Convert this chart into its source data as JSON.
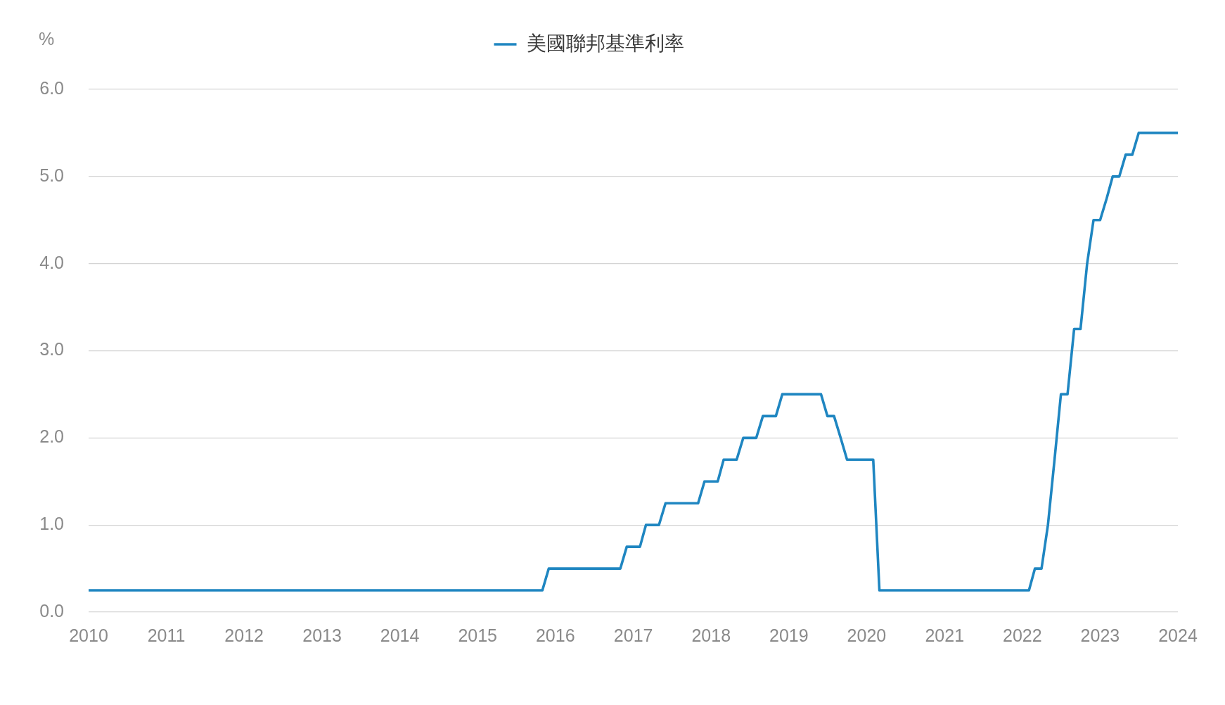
{
  "chart_data": {
    "type": "line",
    "ylabel": "%",
    "x": [
      "2010-01",
      "2015-11",
      "2015-12",
      "2016-11",
      "2016-12",
      "2017-02",
      "2017-03",
      "2017-05",
      "2017-06",
      "2017-11",
      "2017-12",
      "2018-02",
      "2018-03",
      "2018-05",
      "2018-06",
      "2018-08",
      "2018-09",
      "2018-11",
      "2018-12",
      "2019-06",
      "2019-07",
      "2019-08",
      "2019-09",
      "2019-10",
      "2020-02",
      "2020-03",
      "2022-02",
      "2022-03",
      "2022-04",
      "2022-05",
      "2022-06",
      "2022-07",
      "2022-08",
      "2022-09",
      "2022-10",
      "2022-11",
      "2022-12",
      "2023-01",
      "2023-02",
      "2023-03",
      "2023-04",
      "2023-05",
      "2023-06",
      "2023-07",
      "2024-01"
    ],
    "series": [
      {
        "name": "美國聯邦基準利率",
        "color": "#1f86c1",
        "values": [
          0.25,
          0.25,
          0.5,
          0.5,
          0.75,
          0.75,
          1.0,
          1.0,
          1.25,
          1.25,
          1.5,
          1.5,
          1.75,
          1.75,
          2.0,
          2.0,
          2.25,
          2.25,
          2.5,
          2.5,
          2.25,
          2.25,
          2.0,
          1.75,
          1.75,
          0.25,
          0.25,
          0.5,
          0.5,
          1.0,
          1.75,
          2.5,
          2.5,
          3.25,
          3.25,
          4.0,
          4.5,
          4.5,
          4.75,
          5.0,
          5.0,
          5.25,
          5.25,
          5.5,
          5.5
        ]
      }
    ],
    "xlim": [
      "2010-01",
      "2024-01"
    ],
    "xticks": [
      "2010",
      "2011",
      "2012",
      "2013",
      "2014",
      "2015",
      "2016",
      "2017",
      "2018",
      "2019",
      "2020",
      "2021",
      "2022",
      "2023",
      "2024"
    ],
    "ylim": [
      0,
      6
    ],
    "yticks": [
      {
        "value": 0,
        "label": "0.0"
      },
      {
        "value": 1,
        "label": "1.0"
      },
      {
        "value": 2,
        "label": "2.0"
      },
      {
        "value": 3,
        "label": "3.0"
      },
      {
        "value": 4,
        "label": "4.0"
      },
      {
        "value": 5,
        "label": "5.0"
      },
      {
        "value": 6,
        "label": "6.0"
      }
    ],
    "grid": "y",
    "legend": "top",
    "marker": "none",
    "line_style": "solid"
  }
}
